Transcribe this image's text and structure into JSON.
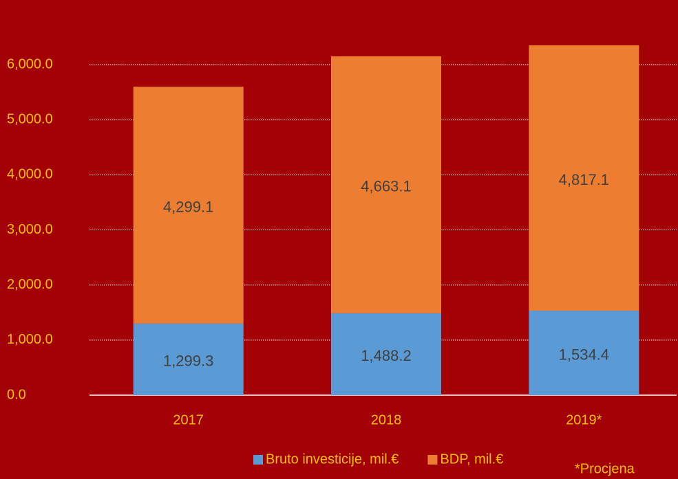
{
  "chart_data": {
    "type": "bar",
    "stacked": true,
    "categories": [
      "2017",
      "2018",
      "2019*"
    ],
    "series": [
      {
        "name": "Bruto investicije, mil.€",
        "color": "#5b9bd5",
        "values": [
          1299.3,
          1488.2,
          1534.4
        ],
        "value_labels": [
          "1,299.3",
          "1,488.2",
          "1,534.4"
        ]
      },
      {
        "name": "BDP, mil.€",
        "color": "#ed7d31",
        "values": [
          4299.1,
          4663.1,
          4817.1
        ],
        "value_labels": [
          "4,299.1",
          "4,663.1",
          "4,817.1"
        ]
      }
    ],
    "ylim": [
      0,
      6500
    ],
    "yticks": [
      {
        "value": 0,
        "label": "0.0"
      },
      {
        "value": 1000,
        "label": "1,000.0"
      },
      {
        "value": 2000,
        "label": "2,000.0"
      },
      {
        "value": 3000,
        "label": "3,000.0"
      },
      {
        "value": 4000,
        "label": "4,000.0"
      },
      {
        "value": 5000,
        "label": "5,000.0"
      },
      {
        "value": 6000,
        "label": "6,000.0"
      }
    ],
    "grid": true,
    "legend": "bottom",
    "annotation": "*Procjena"
  }
}
